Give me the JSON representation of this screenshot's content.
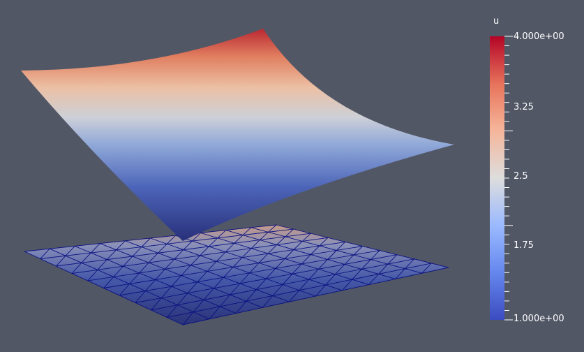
{
  "scalar_bar": {
    "title": "u",
    "range": [
      1.0,
      4.0
    ],
    "ticks": [
      {
        "value": 4.0,
        "label": "4.000e+00"
      },
      {
        "value": 3.25,
        "label": "3.25"
      },
      {
        "value": 2.5,
        "label": "2.5"
      },
      {
        "value": 1.75,
        "label": "1.75"
      },
      {
        "value": 1.0,
        "label": "1.000e+00"
      }
    ],
    "colormap": "Cool to Warm",
    "colors": {
      "low": "#3b4cc0",
      "mid": "#dddddd",
      "high": "#b40426"
    }
  },
  "scene": {
    "background": "#525766",
    "surface": "warped surface colored by u",
    "mesh": "triangulated plane",
    "mesh_edge_color": "#0b1280"
  }
}
